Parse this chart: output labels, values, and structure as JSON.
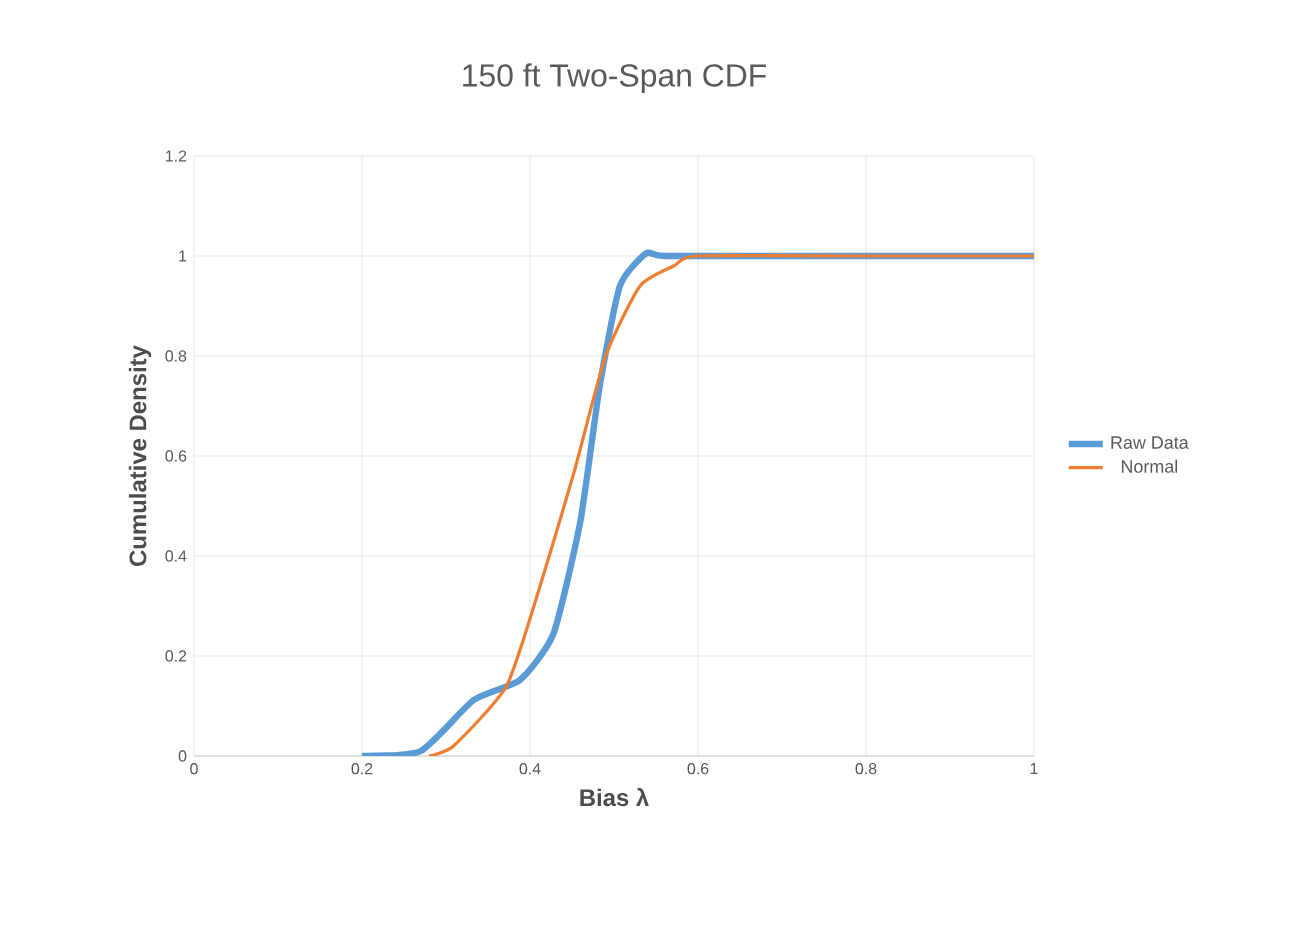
{
  "chart_data": {
    "type": "line",
    "title": "150 ft Two-Span CDF",
    "xlabel": "Bias λ",
    "ylabel": "Cumulative Density",
    "xlim": [
      0,
      1
    ],
    "ylim": [
      0,
      1.2
    ],
    "xticks": [
      0,
      0.2,
      0.4,
      0.6,
      0.8,
      1
    ],
    "yticks": [
      0,
      0.2,
      0.4,
      0.6,
      0.8,
      1,
      1.2
    ],
    "grid": true,
    "legend": "right",
    "marker": "none",
    "series": [
      {
        "name": "Raw Data",
        "color": "#5b9bd5",
        "x": [
          0.2,
          0.27,
          0.333,
          0.388,
          0.428,
          0.46,
          0.483,
          0.507,
          0.538,
          0.56,
          0.7,
          1
        ],
        "values": [
          0,
          0.01,
          0.112,
          0.152,
          0.245,
          0.47,
          0.74,
          0.94,
          1.005,
          1,
          1,
          1
        ]
      },
      {
        "name": "Normal",
        "color": "#ed7d31",
        "x": [
          0.28,
          0.309,
          0.372,
          0.412,
          0.452,
          0.49,
          0.531,
          0.571,
          0.6,
          0.8,
          1
        ],
        "values": [
          0,
          0.02,
          0.14,
          0.34,
          0.565,
          0.8,
          0.94,
          0.98,
          1,
          1,
          1
        ]
      }
    ]
  }
}
